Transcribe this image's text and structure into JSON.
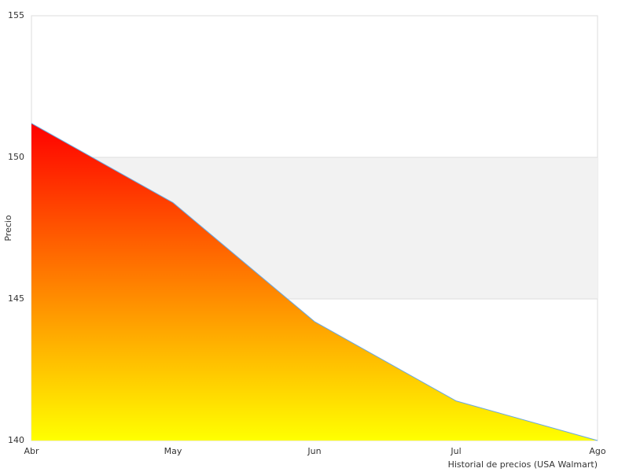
{
  "chart_data": {
    "type": "area",
    "x_label": "Historial de precios (USA Walmart)",
    "y_label": "Precio",
    "categories": [
      "Abr",
      "May",
      "Jun",
      "Jul",
      "Ago"
    ],
    "values": [
      151.2,
      148.4,
      144.2,
      141.4,
      140
    ],
    "ylim": [
      140,
      155
    ],
    "yticks": [
      140,
      145,
      150,
      155
    ],
    "alternate_bands": true,
    "gradient": [
      "#ff0000",
      "#ffff00"
    ],
    "line_color": "#6aa8e0"
  }
}
